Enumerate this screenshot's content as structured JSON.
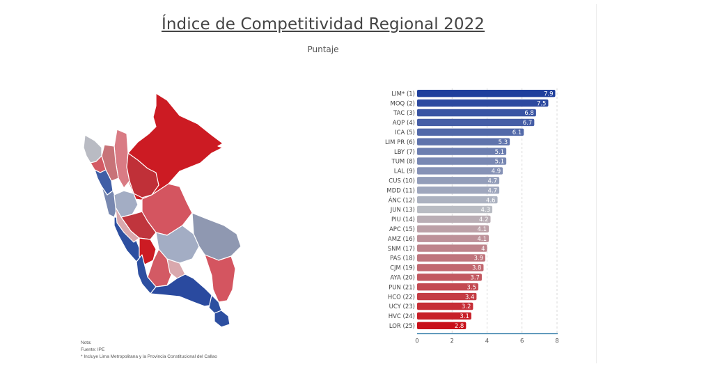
{
  "title": "Índice de Competitividad Regional 2022",
  "subtitle": "Puntaje",
  "notes": {
    "label": "Nota:",
    "source": "Fuente: IPE",
    "footnote": "* Incluye Lima Metropolitana y la Provincia Constitucional del Callao"
  },
  "colors": {
    "high": "#1f3f9c",
    "mid": "#b9bcc3",
    "low": "#c8111a"
  },
  "map": {
    "colors": [
      "#cc1b23",
      "#d97b84",
      "#c87378",
      "#c03038",
      "#b9bbc3",
      "#d35a64",
      "#3f5ea6",
      "#7888b0",
      "#a3adc4",
      "#d45560",
      "#2d4fa0",
      "#c0353d",
      "#d9a8ad",
      "#2a4a9f",
      "#8f98b1"
    ]
  },
  "chart_data": {
    "type": "bar",
    "orientation": "horizontal",
    "categories": [
      "LIM* (1)",
      "MOQ (2)",
      "TAC (3)",
      "AQP (4)",
      "ICA (5)",
      "LIM PR (6)",
      "LBY (7)",
      "TUM (8)",
      "LAL (9)",
      "CUS (10)",
      "MDD (11)",
      "ÁNC (12)",
      "JUN (13)",
      "PIU (14)",
      "APC (15)",
      "AMZ (16)",
      "SNM (17)",
      "PAS (18)",
      "CJM (19)",
      "AYA (20)",
      "PUN (21)",
      "HCO (22)",
      "UCY (23)",
      "HVC (24)",
      "LOR (25)"
    ],
    "values": [
      7.9,
      7.5,
      6.8,
      6.7,
      6.1,
      5.3,
      5.1,
      5.1,
      4.9,
      4.7,
      4.7,
      4.6,
      4.3,
      4.2,
      4.1,
      4.1,
      4,
      3.9,
      3.8,
      3.7,
      3.5,
      3.4,
      3.2,
      3.1,
      2.8
    ],
    "value_labels": [
      "7.9",
      "7.5",
      "6.8",
      "6.7",
      "6.1",
      "5.3",
      "5.1",
      "5.1",
      "4.9",
      "4.7",
      "4.7",
      "4.6",
      "4.3",
      "4.2",
      "4.1",
      "4.1",
      "4",
      "3.9",
      "3.8",
      "3.7",
      "3.5",
      "3.4",
      "3.2",
      "3.1",
      "2.8"
    ],
    "xlim": [
      0,
      8
    ],
    "xticks": [
      "0",
      "2",
      "4",
      "6",
      "8"
    ],
    "grid": true
  }
}
